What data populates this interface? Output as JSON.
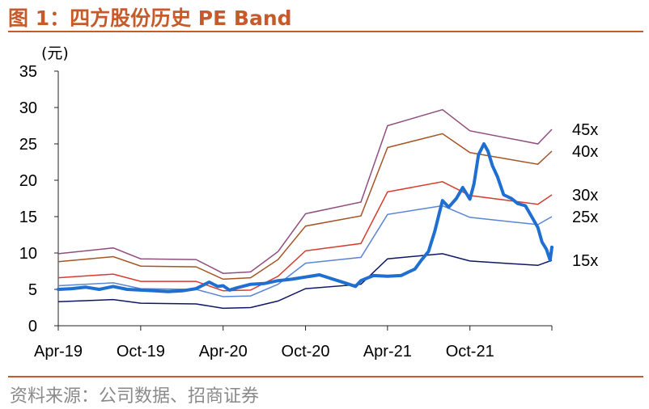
{
  "figure": {
    "title": "图 1：四方股份历史 PE Band",
    "source": "资料来源：公司数据、招商证券"
  },
  "chart_data": {
    "type": "line",
    "title": "图 1：四方股份历史 PE Band",
    "ylabel": "(元)",
    "xlabel": "",
    "ylim": [
      0,
      35
    ],
    "yticks": [
      "0",
      "5",
      "10",
      "15",
      "20",
      "25",
      "30",
      "35"
    ],
    "xlim": [
      "2019-04",
      "2022-04"
    ],
    "xticks": [
      {
        "date": "2019-04",
        "label": "Apr-19"
      },
      {
        "date": "2019-10",
        "label": "Oct-19"
      },
      {
        "date": "2020-04",
        "label": "Apr-20"
      },
      {
        "date": "2020-10",
        "label": "Oct-20"
      },
      {
        "date": "2021-04",
        "label": "Apr-21"
      },
      {
        "date": "2021-10",
        "label": "Oct-21"
      }
    ],
    "grid": false,
    "legend": "right-end labels",
    "band_dates": [
      "2019-04",
      "2019-08",
      "2019-10",
      "2020-02",
      "2020-04",
      "2020-06",
      "2020-08",
      "2020-10",
      "2021-02",
      "2021-04",
      "2021-08",
      "2021-10",
      "2022-03",
      "2022-04"
    ],
    "bands": [
      {
        "label": "45x",
        "color": "#8e4f7e",
        "values": [
          9.9,
          10.7,
          9.2,
          9.1,
          7.2,
          7.4,
          10.2,
          15.4,
          17.0,
          27.5,
          29.7,
          26.8,
          25.0,
          27.0
        ]
      },
      {
        "label": "40x",
        "color": "#a55424",
        "values": [
          8.8,
          9.5,
          8.2,
          8.1,
          6.4,
          6.6,
          9.1,
          13.7,
          15.1,
          24.5,
          26.4,
          23.8,
          22.2,
          24.0
        ]
      },
      {
        "label": "30x",
        "color": "#d63b2f",
        "values": [
          6.6,
          7.1,
          6.1,
          6.1,
          4.8,
          4.9,
          6.8,
          10.3,
          11.3,
          18.4,
          19.8,
          17.9,
          16.7,
          18.0
        ]
      },
      {
        "label": "25x",
        "color": "#5b84d4",
        "values": [
          5.5,
          5.9,
          5.1,
          5.0,
          4.0,
          4.1,
          5.7,
          8.6,
          9.4,
          15.3,
          16.5,
          14.9,
          13.9,
          15.0
        ]
      },
      {
        "label": "15x",
        "color": "#0d1766",
        "values": [
          3.3,
          3.6,
          3.1,
          3.0,
          2.4,
          2.5,
          3.4,
          5.1,
          5.7,
          9.2,
          9.9,
          8.9,
          8.3,
          9.0
        ]
      }
    ],
    "price": {
      "color": "#1f6fd1",
      "points": [
        [
          "2019-04",
          5.0
        ],
        [
          "2019-05",
          5.1
        ],
        [
          "2019-06",
          5.3
        ],
        [
          "2019-07",
          5.0
        ],
        [
          "2019-08",
          5.4
        ],
        [
          "2019-09",
          5.0
        ],
        [
          "2019-10",
          4.9
        ],
        [
          "2019-11",
          4.8
        ],
        [
          "2019-12",
          4.7
        ],
        [
          "2020-01",
          4.8
        ],
        [
          "2020-02",
          5.1
        ],
        [
          "2020-03",
          6.0
        ],
        [
          "2020-03-20",
          5.4
        ],
        [
          "2020-04",
          5.5
        ],
        [
          "2020-04-15",
          4.9
        ],
        [
          "2020-05",
          5.2
        ],
        [
          "2020-06",
          5.7
        ],
        [
          "2020-07",
          5.8
        ],
        [
          "2020-08",
          6.2
        ],
        [
          "2020-09",
          6.4
        ],
        [
          "2020-10",
          6.7
        ],
        [
          "2020-11",
          7.0
        ],
        [
          "2020-12",
          6.4
        ],
        [
          "2021-01",
          5.8
        ],
        [
          "2021-01-20",
          5.4
        ],
        [
          "2021-02",
          6.2
        ],
        [
          "2021-03",
          6.9
        ],
        [
          "2021-04",
          6.8
        ],
        [
          "2021-05",
          6.9
        ],
        [
          "2021-06",
          7.8
        ],
        [
          "2021-06-15",
          9.0
        ],
        [
          "2021-07",
          10.2
        ],
        [
          "2021-07-15",
          13.0
        ],
        [
          "2021-07-25",
          15.5
        ],
        [
          "2021-08",
          17.2
        ],
        [
          "2021-08-15",
          16.3
        ],
        [
          "2021-09",
          17.5
        ],
        [
          "2021-09-15",
          19.0
        ],
        [
          "2021-10",
          17.4
        ],
        [
          "2021-10-10",
          19.5
        ],
        [
          "2021-10-20",
          23.5
        ],
        [
          "2021-11",
          25.0
        ],
        [
          "2021-11-10",
          24.0
        ],
        [
          "2021-11-20",
          22.0
        ],
        [
          "2021-12",
          20.5
        ],
        [
          "2021-12-15",
          18.0
        ],
        [
          "2022-01",
          17.5
        ],
        [
          "2022-01-15",
          16.8
        ],
        [
          "2022-02",
          16.5
        ],
        [
          "2022-02-15",
          15.0
        ],
        [
          "2022-03",
          13.5
        ],
        [
          "2022-03-10",
          11.5
        ],
        [
          "2022-03-20",
          10.5
        ],
        [
          "2022-03-28",
          9.0
        ],
        [
          "2022-04",
          10.8
        ]
      ]
    }
  }
}
